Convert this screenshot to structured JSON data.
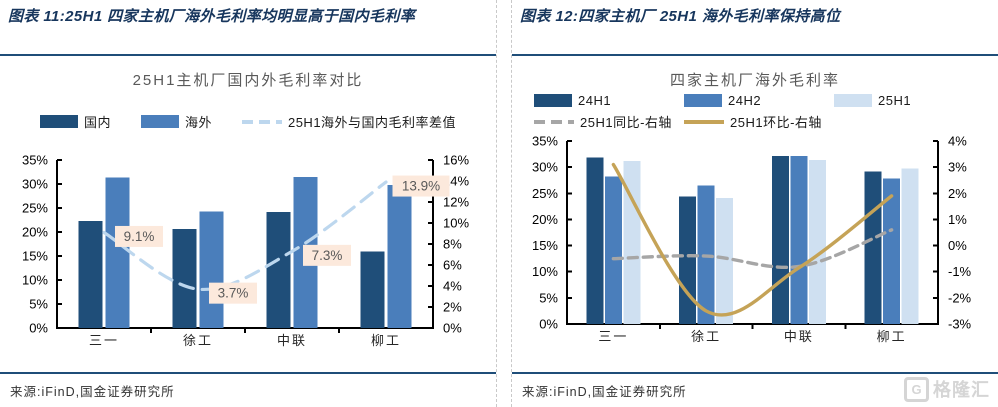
{
  "figures": {
    "left": {
      "header": "图表 11:25H1 四家主机厂海外毛利率均明显高于国内毛利率",
      "source": "来源:iFinD,国金证券研究所"
    },
    "right": {
      "header": "图表 12:四家主机厂 25H1 海外毛利率保持高位",
      "source": "来源:iFinD,国金证券研究所"
    }
  },
  "watermark": {
    "icon": "G",
    "text": "格隆汇"
  },
  "colors": {
    "dark_blue": "#1f4e79",
    "medium_blue": "#4a7ebb",
    "light_blue": "#cfe0f1",
    "pale_blue_line": "#bdd7ee",
    "gray_line": "#a6a6a6",
    "gold_line": "#c5a357",
    "navy_text": "#17365d",
    "rule": "#1f4e79",
    "label_bg": "#fce9dc",
    "label_text": "#595959",
    "axis_text": "#000000"
  },
  "chart_data": [
    {
      "type": "bar",
      "title": "25H1主机厂国内外毛利率对比",
      "categories": [
        "三一",
        "徐工",
        "中联",
        "柳工"
      ],
      "series": [
        {
          "name": "国内",
          "kind": "bar",
          "axis": "left",
          "color": "#1f4e79",
          "values": [
            22.3,
            20.6,
            24.2,
            15.9
          ]
        },
        {
          "name": "海外",
          "kind": "bar",
          "axis": "left",
          "color": "#4a7ebb",
          "values": [
            31.4,
            24.3,
            31.5,
            29.8
          ]
        },
        {
          "name": "25H1海外与国内毛利率差值",
          "kind": "line",
          "dashed": true,
          "axis": "right",
          "color": "#bdd7ee",
          "values": [
            9.1,
            3.7,
            7.3,
            13.9
          ],
          "point_labels": [
            "9.1%",
            "3.7%",
            "7.3%",
            "13.9%"
          ]
        }
      ],
      "left_axis": {
        "min": 0,
        "max": 35,
        "step": 5,
        "unit": "%"
      },
      "right_axis": {
        "min": 0,
        "max": 16,
        "step": 2,
        "unit": "%"
      },
      "legend_position": "top",
      "grid": false
    },
    {
      "type": "bar",
      "title": "四家主机厂海外毛利率",
      "categories": [
        "三一",
        "徐工",
        "中联",
        "柳工"
      ],
      "series": [
        {
          "name": "24H1",
          "kind": "bar",
          "axis": "left",
          "color": "#1f4e79",
          "values": [
            31.8,
            24.4,
            32.1,
            29.2
          ]
        },
        {
          "name": "24H2",
          "kind": "bar",
          "axis": "left",
          "color": "#4a7ebb",
          "values": [
            28.2,
            26.5,
            32.1,
            27.8
          ]
        },
        {
          "name": "25H1",
          "kind": "bar",
          "axis": "left",
          "color": "#cfe0f1",
          "values": [
            31.2,
            24.1,
            31.4,
            29.7
          ]
        },
        {
          "name": "25H1同比-右轴",
          "kind": "line",
          "dashed": true,
          "axis": "right",
          "color": "#a6a6a6",
          "values": [
            -0.5,
            -0.4,
            -0.8,
            0.6
          ]
        },
        {
          "name": "25H1环比-右轴",
          "kind": "line",
          "dashed": false,
          "axis": "right",
          "color": "#c5a357",
          "values": [
            3.1,
            -2.5,
            -0.85,
            1.9
          ]
        }
      ],
      "left_axis": {
        "min": 0,
        "max": 35,
        "step": 5,
        "unit": "%"
      },
      "right_axis": {
        "min": -3,
        "max": 4,
        "step": 1,
        "unit": "%"
      },
      "legend_position": "top",
      "grid": false
    }
  ]
}
